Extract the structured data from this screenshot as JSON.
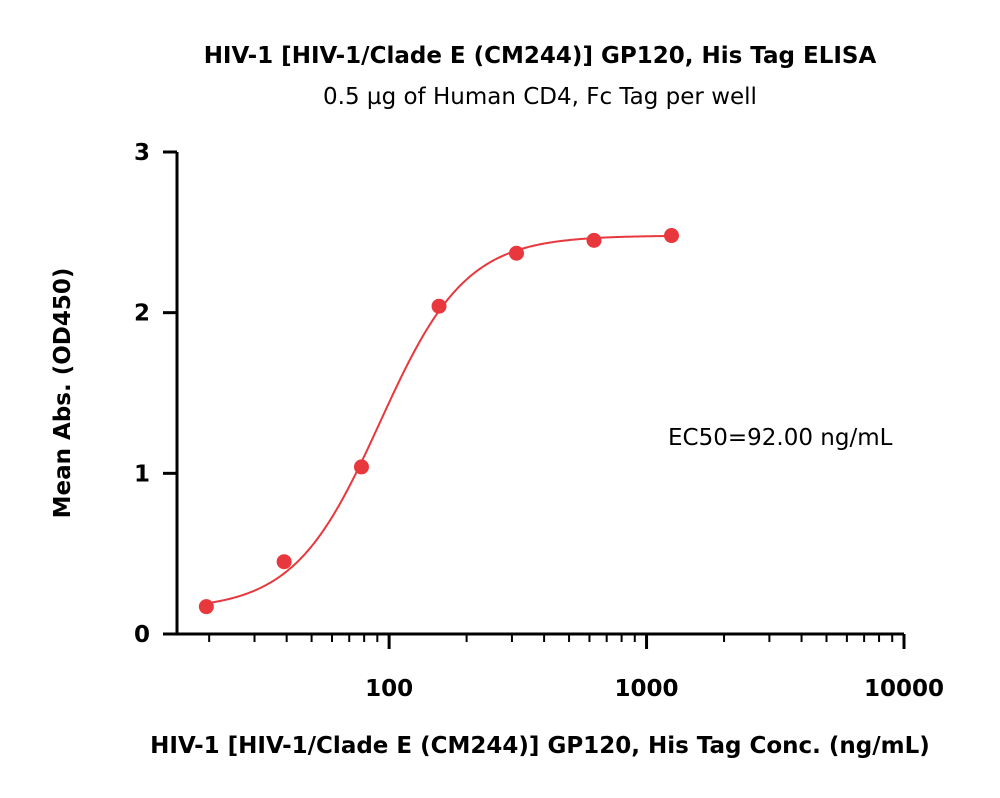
{
  "chart_data": {
    "type": "scatter",
    "title": "HIV-1 [HIV-1/Clade E (CM244)] GP120, His Tag ELISA",
    "subtitle": "0.5 µg of Human CD4, Fc Tag per well",
    "xlabel": "HIV-1 [HIV-1/Clade E (CM244)] GP120, His Tag Conc. (ng/mL)",
    "ylabel": "Mean Abs. (OD450)",
    "xscale": "log",
    "xlim": [
      15,
      10000
    ],
    "ylim": [
      0,
      3
    ],
    "x_ticks": [
      100,
      1000,
      10000
    ],
    "x_tick_labels": [
      "100",
      "1000",
      "10000"
    ],
    "y_ticks": [
      0,
      1,
      2,
      3
    ],
    "y_tick_labels": [
      "0",
      "1",
      "2",
      "3"
    ],
    "grid": false,
    "series": [
      {
        "name": "Mean Abs. (OD450)",
        "color": "#e8383d",
        "x": [
          19.5,
          39.1,
          78.1,
          156.3,
          312.5,
          625,
          1250
        ],
        "y": [
          0.17,
          0.45,
          1.04,
          2.04,
          2.37,
          2.45,
          2.48
        ]
      }
    ],
    "fit": {
      "model": "4PL",
      "bottom": 0.15,
      "top": 2.48,
      "ec50": 92.0,
      "hill": 2.6,
      "x_range": [
        19.5,
        1250
      ],
      "color": "#e8383d"
    },
    "annotation": "EC50=92.00 ng/mL"
  }
}
